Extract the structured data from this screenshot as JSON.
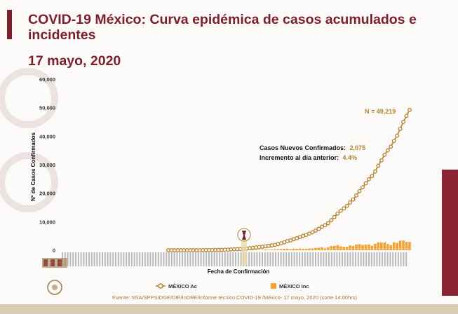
{
  "title": "COVID-19 México: Curva epidémica de casos acumulados e incidentes",
  "date": "17 mayo, 2020",
  "source": "Fuente: SSA/SPPS/DGE/DIE/InDRE/Informe técnico.COVID-19 /México- 17 mayo, 2020 (corte 14:00hrs)",
  "colors": {
    "accent": "#7a1f2b",
    "cumulative": "#b3822b",
    "incident": "#f2a33a"
  },
  "chart_data": {
    "type": "line",
    "ylabel": "Nº de Casos Confirmados",
    "xlabel": "Fecha de Confirmación",
    "ylim": [
      0,
      60000
    ],
    "yticks": [
      "60,000",
      "50,000",
      "40,000",
      "30,000",
      "20,000",
      "10,000",
      "0"
    ],
    "series": [
      {
        "name": "MÉXICO Ac",
        "type": "line",
        "values": [
          1,
          4,
          5,
          5,
          6,
          7,
          7,
          7,
          8,
          11,
          12,
          16,
          26,
          41,
          53,
          82,
          93,
          118,
          164,
          203,
          251,
          316,
          367,
          405,
          475,
          585,
          717,
          848,
          993,
          1094,
          1215,
          1378,
          1510,
          1688,
          1890,
          2143,
          2439,
          2785,
          3181,
          3441,
          3844,
          4219,
          4661,
          5014,
          5399,
          5847,
          6297,
          6875,
          7497,
          8261,
          8772,
          9501,
          10544,
          11633,
          12872,
          13842,
          14677,
          15529,
          16752,
          17799,
          19224,
          20739,
          22088,
          23471,
          24905,
          26025,
          27634,
          29616,
          31522,
          33460,
          35022,
          36327,
          38324,
          40186,
          42595,
          45032,
          47144,
          49219
        ]
      },
      {
        "name": "MÉXICO Inc",
        "type": "bar",
        "values": [
          1,
          3,
          1,
          0,
          1,
          1,
          0,
          0,
          1,
          3,
          1,
          4,
          10,
          15,
          12,
          29,
          11,
          25,
          46,
          39,
          48,
          65,
          51,
          38,
          70,
          110,
          132,
          131,
          145,
          101,
          121,
          163,
          132,
          178,
          202,
          253,
          296,
          346,
          396,
          260,
          403,
          375,
          442,
          353,
          385,
          448,
          450,
          578,
          622,
          764,
          511,
          729,
          1043,
          1089,
          1239,
          970,
          835,
          852,
          1223,
          1047,
          1425,
          1515,
          1349,
          1383,
          1434,
          1120,
          1609,
          1982,
          1906,
          1938,
          1562,
          1305,
          1997,
          1862,
          2409,
          2437,
          2112,
          2075
        ]
      }
    ],
    "annotations": {
      "total": "N = 49,219",
      "new_label": "Casos Nuevos Confirmados:",
      "new_value": "2,075",
      "inc_label": "Incremento al día anterior:",
      "inc_value": "4.4%"
    },
    "legend_position": "bottom",
    "grid": false
  }
}
